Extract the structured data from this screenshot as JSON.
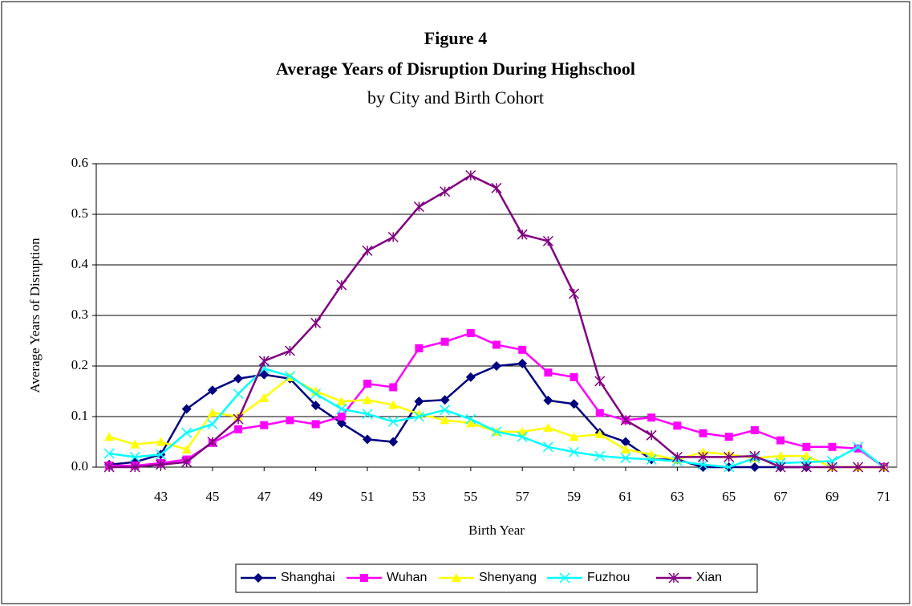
{
  "chart_data": {
    "type": "line",
    "title": "Figure 4",
    "subtitle": "Average Years of Disruption During Highschool",
    "subtitle2": "by City and Birth Cohort",
    "x_label": "Birth Year",
    "y_label": "Average Years of Disruption",
    "x": [
      41,
      42,
      43,
      44,
      45,
      46,
      47,
      48,
      49,
      50,
      51,
      52,
      53,
      54,
      55,
      56,
      57,
      58,
      59,
      60,
      61,
      62,
      63,
      64,
      65,
      66,
      67,
      68,
      69,
      70,
      71
    ],
    "xlim": [
      40.5,
      71.5
    ],
    "xticks": [
      43,
      45,
      47,
      49,
      51,
      53,
      55,
      57,
      59,
      61,
      63,
      65,
      67,
      69,
      71
    ],
    "ylim": [
      0,
      0.6
    ],
    "yticks": [
      {
        "value": 0,
        "label": "0.0"
      },
      0.1,
      0.2,
      0.3,
      0.4,
      0.5,
      0.6
    ],
    "grid": true,
    "legend": "bottom",
    "series": [
      {
        "name": "Shanghai",
        "color": "#000080",
        "marker": "diamond",
        "values": [
          0.005,
          0.01,
          0.025,
          0.115,
          0.152,
          0.175,
          0.183,
          0.175,
          0.122,
          0.087,
          0.055,
          0.05,
          0.13,
          0.133,
          0.178,
          0.2,
          0.205,
          0.132,
          0.125,
          0.068,
          0.05,
          0.015,
          0.015,
          0,
          0,
          0,
          0,
          0,
          null,
          null,
          null
        ]
      },
      {
        "name": "Wuhan",
        "color": "#ff00ff",
        "marker": "square",
        "values": [
          0.003,
          0.003,
          0.008,
          0.015,
          0.048,
          0.075,
          0.083,
          0.093,
          0.085,
          0.1,
          0.165,
          0.158,
          0.235,
          0.248,
          0.265,
          0.242,
          0.232,
          0.187,
          0.178,
          0.107,
          0.093,
          0.098,
          0.082,
          0.067,
          0.06,
          0.073,
          0.053,
          0.04,
          0.04,
          0.037,
          0
        ]
      },
      {
        "name": "Shenyang",
        "color": "#ffff00",
        "marker": "triangle",
        "values": [
          0.06,
          0.045,
          0.05,
          0.035,
          0.108,
          0.1,
          0.137,
          0.178,
          0.15,
          0.13,
          0.133,
          0.123,
          0.105,
          0.093,
          0.087,
          0.07,
          0.07,
          0.078,
          0.06,
          0.065,
          0.035,
          0.025,
          0.015,
          0.03,
          0.025,
          0.018,
          0.022,
          0.022,
          0,
          0,
          0
        ]
      },
      {
        "name": "Fuzhou",
        "color": "#00ffff",
        "marker": "x",
        "values": [
          0.027,
          0.02,
          0.025,
          0.068,
          0.085,
          0.145,
          0.195,
          0.18,
          0.145,
          0.115,
          0.105,
          0.09,
          0.1,
          0.113,
          0.095,
          0.07,
          0.06,
          0.04,
          0.03,
          0.022,
          0.018,
          0.015,
          0.012,
          0.005,
          0,
          0.018,
          0.008,
          0.01,
          0.012,
          0.04,
          0
        ]
      },
      {
        "name": "Xian",
        "color": "#800080",
        "marker": "star",
        "values": [
          0,
          0,
          0.005,
          0.01,
          0.05,
          0.095,
          0.21,
          0.23,
          0.285,
          0.36,
          0.428,
          0.455,
          0.515,
          0.545,
          0.577,
          0.552,
          0.46,
          0.447,
          0.343,
          0.17,
          0.093,
          0.063,
          0.02,
          0.02,
          0.02,
          0.022,
          0,
          0,
          0,
          0,
          0
        ]
      }
    ]
  }
}
